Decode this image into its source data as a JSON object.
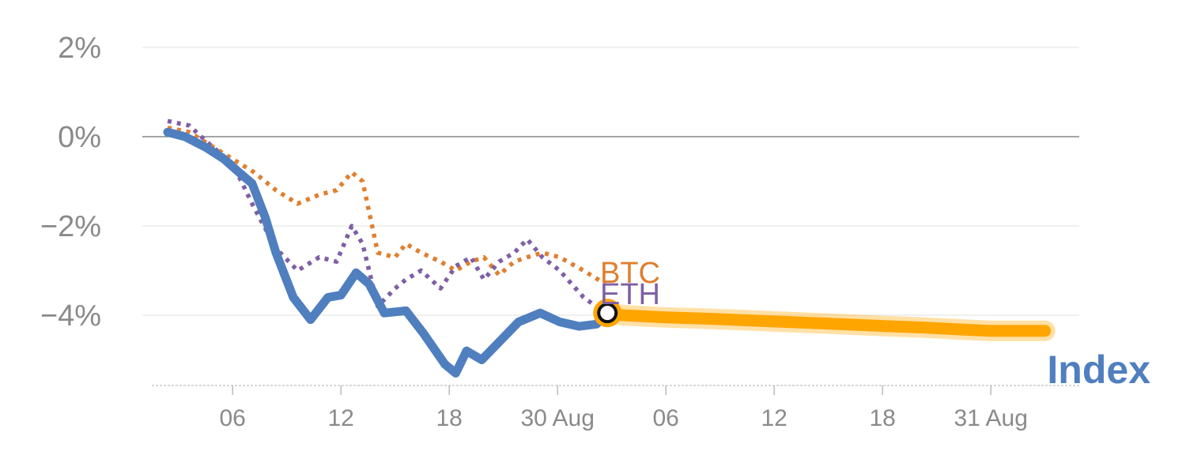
{
  "colors": {
    "index": "#4f7fbf",
    "btc": "#e07f2e",
    "eth": "#7f5fa5",
    "forecast": "#ffa500",
    "grid": "#e6e6e6",
    "zero_line": "#888888",
    "tick_text": "#8a8a8a"
  },
  "chart_data": {
    "type": "line",
    "title": "",
    "xlabel": "",
    "ylabel": "",
    "x_range": [
      0,
      41
    ],
    "ylim": [
      -5.5,
      2.2
    ],
    "y_ticks": [
      {
        "value": 2,
        "label": "2%"
      },
      {
        "value": 0,
        "label": "0%"
      },
      {
        "value": -2,
        "label": "−2%"
      },
      {
        "value": -4,
        "label": "−4%"
      }
    ],
    "x_ticks": [
      {
        "x": 3,
        "label": "06"
      },
      {
        "x": 8,
        "label": "12"
      },
      {
        "x": 13,
        "label": "18"
      },
      {
        "x": 18,
        "label": "30 Aug"
      },
      {
        "x": 23,
        "label": "06"
      },
      {
        "x": 28,
        "label": "12"
      },
      {
        "x": 33,
        "label": "18"
      },
      {
        "x": 38,
        "label": "31 Aug"
      }
    ],
    "grid": true,
    "series": [
      {
        "name": "Index",
        "key": "index",
        "style": "solid",
        "x": [
          0,
          0.8,
          1.8,
          2.6,
          3.3,
          3.9,
          4.5,
          5,
          5.8,
          6.6,
          7.4,
          8,
          8.7,
          9.3,
          10,
          11,
          11.8,
          12.3,
          12.8,
          13.3,
          13.8,
          14.5,
          15.3,
          16.2,
          17.2,
          18.1,
          19,
          19.8,
          20.3
        ],
        "y": [
          0.1,
          0.0,
          -0.25,
          -0.5,
          -0.8,
          -1.05,
          -1.8,
          -2.6,
          -3.6,
          -4.1,
          -3.6,
          -3.55,
          -3.05,
          -3.3,
          -3.95,
          -3.9,
          -4.4,
          -4.75,
          -5.1,
          -5.3,
          -4.8,
          -5.0,
          -4.6,
          -4.15,
          -3.95,
          -4.15,
          -4.25,
          -4.2,
          -3.95
        ]
      },
      {
        "name": "BTC",
        "key": "btc",
        "style": "dotted",
        "x": [
          0,
          1,
          2,
          3,
          4,
          5,
          6,
          7,
          7.8,
          8.5,
          9,
          9.7,
          10.5,
          11,
          11.7,
          12.6,
          13.3,
          14,
          14.6,
          15.3,
          16,
          16.6,
          17.3,
          18.1,
          19.2,
          20.2
        ],
        "y": [
          0.2,
          0.1,
          -0.2,
          -0.5,
          -0.8,
          -1.2,
          -1.5,
          -1.3,
          -1.2,
          -0.8,
          -1.0,
          -2.6,
          -2.7,
          -2.4,
          -2.6,
          -2.8,
          -3.0,
          -2.8,
          -2.7,
          -3.1,
          -2.8,
          -2.7,
          -2.6,
          -2.7,
          -3.0,
          -3.3
        ]
      },
      {
        "name": "ETH",
        "key": "eth",
        "style": "dotted",
        "x": [
          0,
          1,
          2,
          3,
          4,
          5,
          6,
          7,
          7.8,
          8.5,
          9,
          9.7,
          10.5,
          11,
          11.7,
          12.6,
          13.3,
          14,
          14.6,
          15.3,
          16,
          16.6,
          17.3,
          18.1,
          19.2,
          20.2
        ],
        "y": [
          0.35,
          0.25,
          -0.2,
          -0.6,
          -1.6,
          -2.5,
          -3.0,
          -2.7,
          -2.8,
          -2.0,
          -2.4,
          -3.8,
          -3.4,
          -3.2,
          -3.0,
          -3.4,
          -2.9,
          -2.7,
          -3.2,
          -2.8,
          -2.6,
          -2.3,
          -2.7,
          -3.0,
          -3.6,
          -3.95
        ]
      },
      {
        "name": "",
        "key": "forecast",
        "style": "band",
        "x": [
          20.3,
          21,
          23,
          25,
          27,
          29,
          31,
          33,
          35,
          37,
          38,
          40.5
        ],
        "y": [
          -3.95,
          -4.0,
          -4.05,
          -4.08,
          -4.12,
          -4.16,
          -4.2,
          -4.24,
          -4.28,
          -4.33,
          -4.35,
          -4.35
        ]
      }
    ],
    "annotations": [
      {
        "text": "BTC",
        "key": "btc"
      },
      {
        "text": "ETH",
        "key": "eth"
      },
      {
        "text": "Index",
        "key": "index"
      }
    ],
    "current_marker": {
      "x": 20.3,
      "y": -3.95
    }
  }
}
